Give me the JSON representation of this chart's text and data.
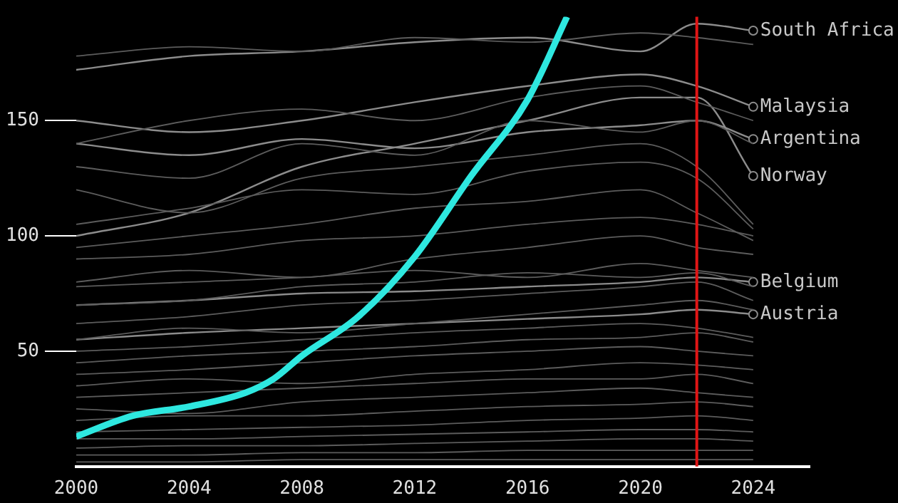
{
  "chart_data": {
    "type": "line",
    "x": [
      2000,
      2004,
      2008,
      2012,
      2016,
      2020,
      2022,
      2024
    ],
    "xlim": [
      2000,
      2026
    ],
    "xticks": [
      2000,
      2004,
      2008,
      2012,
      2016,
      2020,
      2024
    ],
    "ylim": [
      0,
      195
    ],
    "yticks": [
      50,
      100,
      150
    ],
    "ref_lines": [
      {
        "axis": "x",
        "value": 2022,
        "color": "#e01515"
      }
    ],
    "series": [
      {
        "color": "#5c5c5c",
        "values": [
          178,
          182,
          180,
          186,
          184,
          188,
          186,
          183
        ]
      },
      {
        "color": "#5c5c5c",
        "values": [
          140,
          150,
          155,
          150,
          160,
          165,
          158,
          150
        ]
      },
      {
        "color": "#5c5c5c",
        "values": [
          130,
          125,
          140,
          135,
          150,
          145,
          150,
          140
        ]
      },
      {
        "color": "#5c5c5c",
        "values": [
          120,
          110,
          125,
          130,
          135,
          140,
          130,
          105
        ]
      },
      {
        "color": "#5c5c5c",
        "values": [
          105,
          112,
          120,
          118,
          128,
          132,
          125,
          103
        ]
      },
      {
        "color": "#5c5c5c",
        "values": [
          95,
          100,
          105,
          112,
          115,
          120,
          110,
          98
        ]
      },
      {
        "color": "#5c5c5c",
        "values": [
          90,
          92,
          98,
          100,
          105,
          108,
          105,
          100
        ]
      },
      {
        "color": "#5c5c5c",
        "values": [
          80,
          85,
          82,
          90,
          95,
          100,
          95,
          92
        ]
      },
      {
        "color": "#5c5c5c",
        "values": [
          78,
          80,
          82,
          85,
          82,
          88,
          85,
          82
        ]
      },
      {
        "color": "#5c5c5c",
        "values": [
          70,
          72,
          78,
          80,
          84,
          82,
          84,
          78
        ]
      },
      {
        "color": "#5c5c5c",
        "values": [
          62,
          65,
          70,
          72,
          75,
          78,
          80,
          72
        ]
      },
      {
        "color": "#5c5c5c",
        "values": [
          55,
          60,
          58,
          62,
          66,
          70,
          72,
          68
        ]
      },
      {
        "color": "#5c5c5c",
        "values": [
          50,
          52,
          55,
          58,
          60,
          62,
          60,
          56
        ]
      },
      {
        "color": "#5c5c5c",
        "values": [
          45,
          48,
          50,
          52,
          55,
          56,
          58,
          54
        ]
      },
      {
        "color": "#5c5c5c",
        "values": [
          40,
          42,
          45,
          48,
          50,
          52,
          50,
          48
        ]
      },
      {
        "color": "#5c5c5c",
        "values": [
          35,
          38,
          36,
          40,
          42,
          45,
          44,
          42
        ]
      },
      {
        "color": "#5c5c5c",
        "values": [
          30,
          32,
          34,
          36,
          38,
          38,
          40,
          36
        ]
      },
      {
        "color": "#5c5c5c",
        "values": [
          25,
          23,
          28,
          30,
          32,
          34,
          32,
          30
        ]
      },
      {
        "color": "#5c5c5c",
        "values": [
          20,
          22,
          22,
          24,
          26,
          27,
          28,
          26
        ]
      },
      {
        "color": "#5c5c5c",
        "values": [
          15,
          16,
          17,
          18,
          20,
          21,
          22,
          20
        ]
      },
      {
        "color": "#5c5c5c",
        "values": [
          12,
          12,
          13,
          14,
          15,
          16,
          16,
          15
        ]
      },
      {
        "color": "#5c5c5c",
        "values": [
          8,
          9,
          9,
          10,
          11,
          12,
          12,
          11
        ]
      },
      {
        "color": "#5c5c5c",
        "values": [
          5,
          5,
          6,
          6,
          7,
          7,
          7,
          7
        ]
      },
      {
        "color": "#5c5c5c",
        "values": [
          2,
          2,
          3,
          3,
          3,
          3,
          3,
          3
        ]
      },
      {
        "name": "South Africa",
        "color": "#8c8c8c",
        "values": [
          172,
          178,
          180,
          184,
          186,
          180,
          192,
          189
        ]
      },
      {
        "name": "Malaysia",
        "color": "#8c8c8c",
        "values": [
          150,
          145,
          150,
          158,
          165,
          170,
          165,
          156
        ]
      },
      {
        "name": "Argentina",
        "color": "#8c8c8c",
        "values": [
          140,
          135,
          142,
          138,
          145,
          148,
          150,
          142
        ]
      },
      {
        "name": "Norway",
        "color": "#8c8c8c",
        "values": [
          100,
          110,
          130,
          140,
          150,
          160,
          160,
          126
        ]
      },
      {
        "name": "Belgium",
        "color": "#8c8c8c",
        "values": [
          70,
          72,
          75,
          76,
          78,
          80,
          82,
          80
        ]
      },
      {
        "name": "Austria",
        "color": "#8c8c8c",
        "values": [
          55,
          58,
          60,
          62,
          64,
          66,
          68,
          66
        ]
      },
      {
        "color": "#2ee8e0",
        "x": [
          2000,
          2002,
          2004,
          2006,
          2007,
          2008,
          2010,
          2012,
          2014,
          2016,
          2017.4
        ],
        "values": [
          13,
          22,
          26,
          32,
          38,
          48,
          65,
          91,
          126,
          159,
          195
        ]
      }
    ]
  }
}
